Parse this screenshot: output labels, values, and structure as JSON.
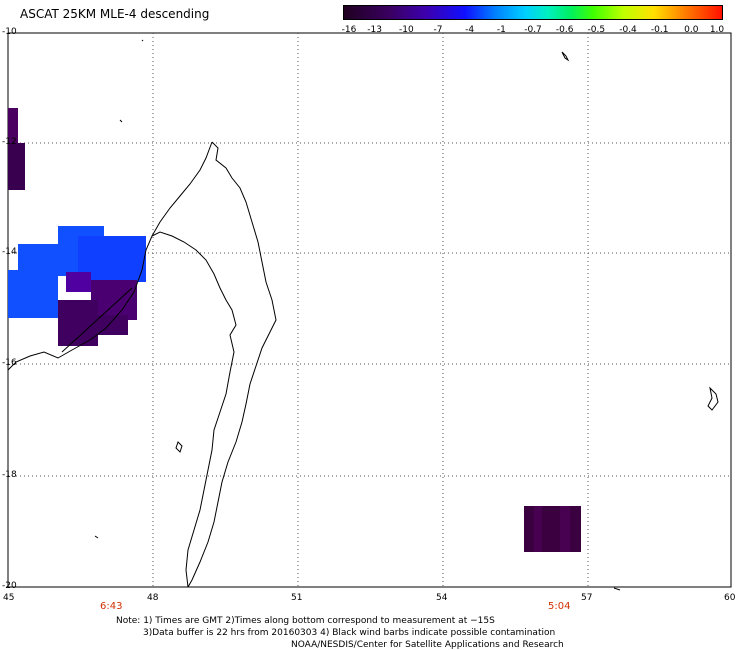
{
  "title": "ASCAT 25KM MLE-4 descending",
  "colorbar": {
    "labels": [
      "-16",
      "-13",
      "-10",
      "-7",
      "-4",
      "-1",
      "-0.7",
      "-0.6",
      "-0.5",
      "-0.4",
      "-0.1",
      "0.0",
      "1.0"
    ],
    "colors": [
      "#2a0030",
      "#3b0080",
      "#3000c8",
      "#0040ff",
      "#0090ff",
      "#00d8ff",
      "#00e8b0",
      "#00f060",
      "#80f000",
      "#e0f000",
      "#ffc000",
      "#ff6000",
      "#ff0000"
    ]
  },
  "axes": {
    "lat_labels": [
      "-10",
      "-12",
      "-14",
      "-16",
      "-18",
      "-20"
    ],
    "lon_labels": [
      "45",
      "48",
      "51",
      "54",
      "57",
      "60"
    ]
  },
  "times": {
    "left": "6:43",
    "right": "5:04"
  },
  "notes": {
    "line1": "Note: 1) Times are GMT 2)Times along bottom correspond to measurement at −15S",
    "line2": "3)Data buffer is 22 hrs from 20160303 4) Black wind barbs indicate possible contamination",
    "line3": "NOAA/NESDIS/Center for Satellite Applications and Research"
  }
}
